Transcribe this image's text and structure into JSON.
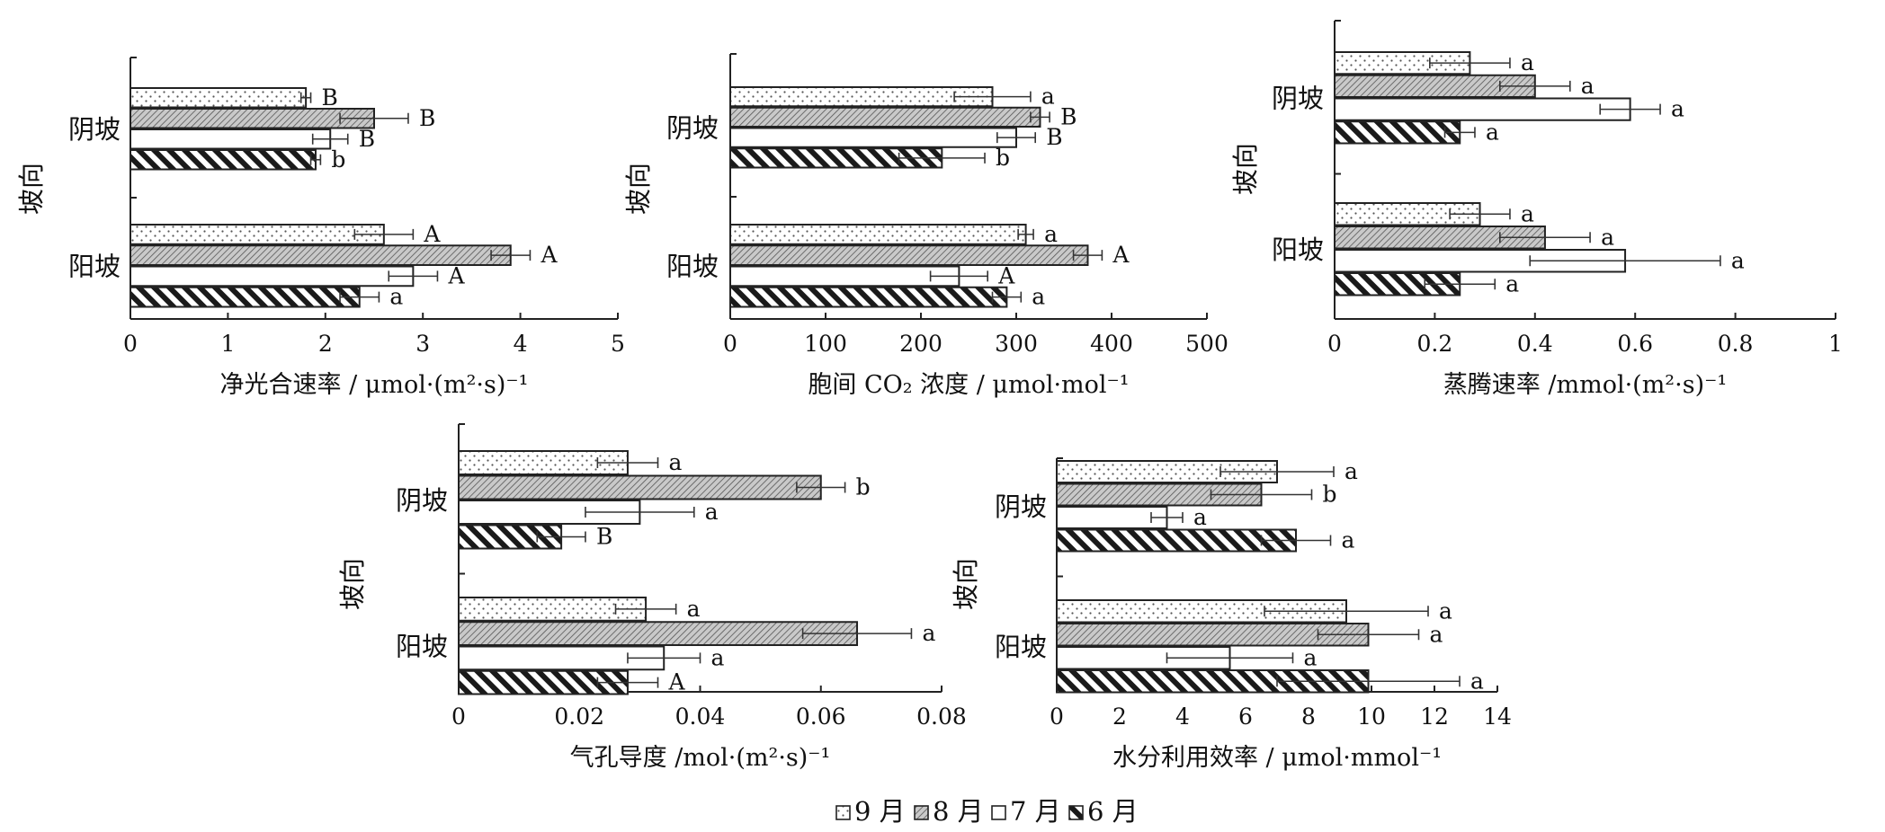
{
  "legend": {
    "items": [
      {
        "key": "sep",
        "label": "9 月"
      },
      {
        "key": "aug",
        "label": "8 月"
      },
      {
        "key": "jul",
        "label": "7 月"
      },
      {
        "key": "jun",
        "label": "6 月"
      }
    ]
  },
  "chart_data": [
    {
      "type": "bar",
      "orientation": "horizontal",
      "xlabel": "净光合速率 / μmol·(m²·s)⁻¹",
      "ylabel": "坡向",
      "xlim": [
        0,
        5
      ],
      "xticks": [
        "0",
        "1",
        "2",
        "3",
        "4",
        "5"
      ],
      "categories": [
        "阴坡",
        "阳坡"
      ],
      "series": [
        {
          "name": "9 月",
          "values": [
            1.8,
            2.6
          ],
          "errors": [
            0.05,
            0.3
          ],
          "labels": [
            "B",
            "A"
          ]
        },
        {
          "name": "8 月",
          "values": [
            2.5,
            3.9
          ],
          "errors": [
            0.35,
            0.2
          ],
          "labels": [
            "B",
            "A"
          ]
        },
        {
          "name": "7 月",
          "values": [
            2.05,
            2.9
          ],
          "errors": [
            0.18,
            0.25
          ],
          "labels": [
            "B",
            "A"
          ]
        },
        {
          "name": "6 月",
          "values": [
            1.9,
            2.35
          ],
          "errors": [
            0.05,
            0.2
          ],
          "labels": [
            "b",
            "a"
          ]
        }
      ]
    },
    {
      "type": "bar",
      "orientation": "horizontal",
      "xlabel": "胞间 CO₂ 浓度 / μmol·mol⁻¹",
      "ylabel": "坡向",
      "xlim": [
        0,
        500
      ],
      "xticks": [
        "0",
        "100",
        "200",
        "300",
        "400",
        "500"
      ],
      "categories": [
        "阴坡",
        "阳坡"
      ],
      "series": [
        {
          "name": "9 月",
          "values": [
            275,
            310
          ],
          "errors": [
            40,
            8
          ],
          "labels": [
            "a",
            "a"
          ]
        },
        {
          "name": "8 月",
          "values": [
            325,
            375
          ],
          "errors": [
            10,
            15
          ],
          "labels": [
            "B",
            "A"
          ]
        },
        {
          "name": "7 月",
          "values": [
            300,
            240
          ],
          "errors": [
            20,
            30
          ],
          "labels": [
            "B",
            "A"
          ]
        },
        {
          "name": "6 月",
          "values": [
            222,
            290
          ],
          "errors": [
            45,
            15
          ],
          "labels": [
            "b",
            "a"
          ]
        }
      ]
    },
    {
      "type": "bar",
      "orientation": "horizontal",
      "xlabel": "蒸腾速率 /mmol·(m²·s)⁻¹",
      "ylabel": "坡向",
      "xlim": [
        0,
        1
      ],
      "xticks": [
        "0",
        "0.2",
        "0.4",
        "0.6",
        "0.8",
        "1"
      ],
      "categories": [
        "阴坡",
        "阳坡"
      ],
      "series": [
        {
          "name": "9 月",
          "values": [
            0.27,
            0.29
          ],
          "errors": [
            0.08,
            0.06
          ],
          "labels": [
            "a",
            "a"
          ]
        },
        {
          "name": "8 月",
          "values": [
            0.4,
            0.42
          ],
          "errors": [
            0.07,
            0.09
          ],
          "labels": [
            "a",
            "a"
          ]
        },
        {
          "name": "7 月",
          "values": [
            0.59,
            0.58
          ],
          "errors": [
            0.06,
            0.19
          ],
          "labels": [
            "a",
            "a"
          ]
        },
        {
          "name": "6 月",
          "values": [
            0.25,
            0.25
          ],
          "errors": [
            0.03,
            0.07
          ],
          "labels": [
            "a",
            "a"
          ]
        }
      ]
    },
    {
      "type": "bar",
      "orientation": "horizontal",
      "xlabel": "气孔导度 /mol·(m²·s)⁻¹",
      "ylabel": "坡向",
      "xlim": [
        0,
        0.08
      ],
      "xticks": [
        "0",
        "0.02",
        "0.04",
        "0.06",
        "0.08"
      ],
      "categories": [
        "阴坡",
        "阳坡"
      ],
      "series": [
        {
          "name": "9 月",
          "values": [
            0.028,
            0.031
          ],
          "errors": [
            0.005,
            0.005
          ],
          "labels": [
            "a",
            "a"
          ]
        },
        {
          "name": "8 月",
          "values": [
            0.06,
            0.066
          ],
          "errors": [
            0.004,
            0.009
          ],
          "labels": [
            "b",
            "a"
          ]
        },
        {
          "name": "7 月",
          "values": [
            0.03,
            0.034
          ],
          "errors": [
            0.009,
            0.006
          ],
          "labels": [
            "a",
            "a"
          ]
        },
        {
          "name": "6 月",
          "values": [
            0.017,
            0.028
          ],
          "errors": [
            0.004,
            0.005
          ],
          "labels": [
            "B",
            "A"
          ]
        }
      ]
    },
    {
      "type": "bar",
      "orientation": "horizontal",
      "xlabel": "水分利用效率 / μmol·mmol⁻¹",
      "ylabel": "坡向",
      "xlim": [
        0,
        14
      ],
      "xticks": [
        "0",
        "2",
        "4",
        "6",
        "8",
        "10",
        "12",
        "14"
      ],
      "categories": [
        "阴坡",
        "阳坡"
      ],
      "series": [
        {
          "name": "9 月",
          "values": [
            7.0,
            9.2
          ],
          "errors": [
            1.8,
            2.6
          ],
          "labels": [
            "a",
            "a"
          ]
        },
        {
          "name": "8 月",
          "values": [
            6.5,
            9.9
          ],
          "errors": [
            1.6,
            1.6
          ],
          "labels": [
            "b",
            "a"
          ]
        },
        {
          "name": "7 月",
          "values": [
            3.5,
            5.5
          ],
          "errors": [
            0.5,
            2.0
          ],
          "labels": [
            "a",
            "a"
          ]
        },
        {
          "name": "6 月",
          "values": [
            7.6,
            9.9
          ],
          "errors": [
            1.1,
            2.9
          ],
          "labels": [
            "a",
            "a"
          ]
        }
      ]
    }
  ]
}
